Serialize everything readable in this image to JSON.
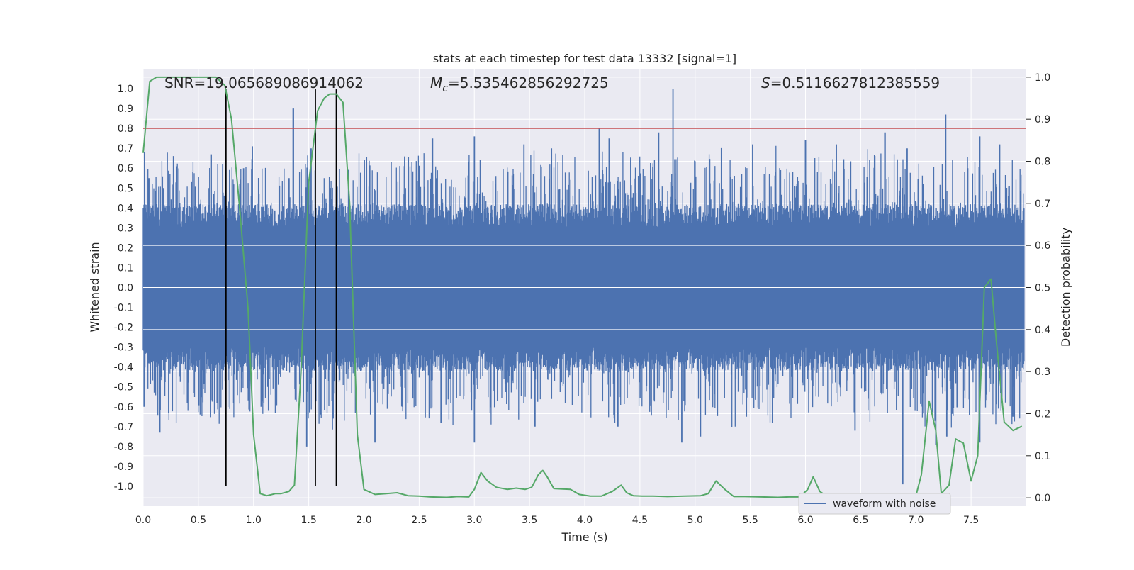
{
  "chart_data": {
    "type": "line",
    "title": "stats at each timestep for test data 13332 [signal=1]",
    "xlabel": "Time (s)",
    "ylabel_left": "Whitened strain",
    "ylabel_right": "Detection probability",
    "xlim": [
      0.0,
      8.0
    ],
    "ylim_left": [
      -1.1,
      1.1
    ],
    "ylim_right": [
      -0.02,
      1.02
    ],
    "x_ticks": [
      "0.0",
      "0.5",
      "1.0",
      "1.5",
      "2.0",
      "2.5",
      "3.0",
      "3.5",
      "4.0",
      "4.5",
      "5.0",
      "5.5",
      "6.0",
      "6.5",
      "7.0",
      "7.5"
    ],
    "y_left_ticks": [
      "1.0",
      "0.9",
      "0.8",
      "0.7",
      "0.6",
      "0.5",
      "0.4",
      "0.3",
      "0.2",
      "0.1",
      "0.0",
      "-0.1",
      "-0.2",
      "-0.3",
      "-0.4",
      "-0.5",
      "-0.6",
      "-0.7",
      "-0.8",
      "-0.9",
      "-1.0"
    ],
    "y_right_ticks": [
      "1.0",
      "0.9",
      "0.8",
      "0.7",
      "0.6",
      "0.5",
      "0.4",
      "0.3",
      "0.2",
      "0.1",
      "0.0"
    ],
    "annotations": {
      "snr": "SNR=19.065689086914062",
      "mc_symbol": "M",
      "mc_sub": "c",
      "mc_value": "=5.535462856292725",
      "s_symbol": "S",
      "s_value": "=0.5116627812385559"
    },
    "threshold_left": 0.8,
    "vertical_markers_x": [
      0.75,
      1.56,
      1.75
    ],
    "marker_ymin": -1.0,
    "marker_ymax": 1.0,
    "waveform": {
      "name": "waveform with noise",
      "color": "#4c72b0",
      "core_amplitude": 0.3,
      "upper_peaks": [
        [
          0.05,
          0.55
        ],
        [
          0.18,
          0.5
        ],
        [
          0.45,
          0.58
        ],
        [
          0.72,
          0.62
        ],
        [
          0.91,
          0.6
        ],
        [
          1.32,
          0.55
        ],
        [
          1.36,
          0.9
        ],
        [
          1.52,
          0.7
        ],
        [
          2.62,
          0.75
        ],
        [
          3.0,
          0.76
        ],
        [
          3.45,
          0.72
        ],
        [
          3.7,
          0.7
        ],
        [
          4.13,
          0.8
        ],
        [
          4.22,
          0.75
        ],
        [
          4.67,
          0.78
        ],
        [
          4.8,
          1.0
        ],
        [
          5.52,
          0.72
        ],
        [
          6.0,
          0.74
        ],
        [
          6.28,
          0.72
        ],
        [
          6.72,
          0.78
        ],
        [
          6.92,
          0.7
        ],
        [
          7.27,
          0.87
        ],
        [
          7.58,
          0.76
        ],
        [
          7.76,
          0.72
        ]
      ],
      "lower_peaks": [
        [
          0.01,
          -0.6
        ],
        [
          0.15,
          -0.73
        ],
        [
          0.23,
          -0.62
        ],
        [
          1.07,
          -0.6
        ],
        [
          1.48,
          -0.8
        ],
        [
          2.1,
          -0.78
        ],
        [
          2.7,
          -0.68
        ],
        [
          3.0,
          -0.78
        ],
        [
          3.55,
          -0.7
        ],
        [
          4.3,
          -0.7
        ],
        [
          4.88,
          -0.78
        ],
        [
          5.05,
          -0.75
        ],
        [
          5.7,
          -0.68
        ],
        [
          6.45,
          -0.72
        ],
        [
          6.88,
          -0.99
        ],
        [
          7.18,
          -0.79
        ],
        [
          7.28,
          -0.75
        ],
        [
          7.58,
          -0.78
        ],
        [
          7.88,
          -0.65
        ]
      ]
    },
    "probability": {
      "name": "detection probability",
      "color": "#55a868",
      "x": [
        0.0,
        0.06,
        0.12,
        0.2,
        0.3,
        0.4,
        0.5,
        0.6,
        0.66,
        0.74,
        0.8,
        0.87,
        0.95,
        1.0,
        1.06,
        1.12,
        1.2,
        1.25,
        1.32,
        1.37,
        1.43,
        1.5,
        1.58,
        1.64,
        1.69,
        1.75,
        1.81,
        1.87,
        1.94,
        2.0,
        2.1,
        2.2,
        2.3,
        2.4,
        2.5,
        2.6,
        2.75,
        2.85,
        2.95,
        3.0,
        3.06,
        3.12,
        3.2,
        3.3,
        3.38,
        3.46,
        3.52,
        3.58,
        3.62,
        3.66,
        3.72,
        3.8,
        3.87,
        3.95,
        4.05,
        4.15,
        4.25,
        4.33,
        4.38,
        4.44,
        4.52,
        4.62,
        4.75,
        4.9,
        5.05,
        5.12,
        5.19,
        5.27,
        5.35,
        5.45,
        5.6,
        5.75,
        5.85,
        5.95,
        6.02,
        6.07,
        6.13,
        6.2,
        6.26,
        6.31,
        6.36,
        6.45,
        6.6,
        6.8,
        6.95,
        7.0,
        7.05,
        7.12,
        7.18,
        7.23,
        7.3,
        7.36,
        7.43,
        7.5,
        7.56,
        7.62,
        7.68,
        7.73,
        7.8,
        7.88,
        7.96
      ],
      "y": [
        0.82,
        0.99,
        1.0,
        1.0,
        1.0,
        1.0,
        1.0,
        1.0,
        1.0,
        0.98,
        0.9,
        0.7,
        0.45,
        0.15,
        0.01,
        0.005,
        0.01,
        0.01,
        0.015,
        0.03,
        0.3,
        0.75,
        0.92,
        0.95,
        0.96,
        0.96,
        0.94,
        0.7,
        0.15,
        0.02,
        0.008,
        0.01,
        0.012,
        0.005,
        0.004,
        0.002,
        0.001,
        0.003,
        0.002,
        0.02,
        0.06,
        0.04,
        0.025,
        0.02,
        0.023,
        0.02,
        0.025,
        0.055,
        0.065,
        0.05,
        0.022,
        0.021,
        0.02,
        0.008,
        0.004,
        0.004,
        0.015,
        0.03,
        0.012,
        0.005,
        0.004,
        0.004,
        0.003,
        0.004,
        0.005,
        0.01,
        0.04,
        0.02,
        0.003,
        0.003,
        0.002,
        0.001,
        0.002,
        0.002,
        0.02,
        0.05,
        0.015,
        0.003,
        0.01,
        0.003,
        0.002,
        0.002,
        0.001,
        0.001,
        0.004,
        0.005,
        0.055,
        0.23,
        0.16,
        0.01,
        0.03,
        0.14,
        0.13,
        0.04,
        0.1,
        0.5,
        0.52,
        0.37,
        0.18,
        0.16,
        0.17
      ]
    },
    "legend": {
      "label": "waveform with noise",
      "placement": "lower-right"
    }
  }
}
